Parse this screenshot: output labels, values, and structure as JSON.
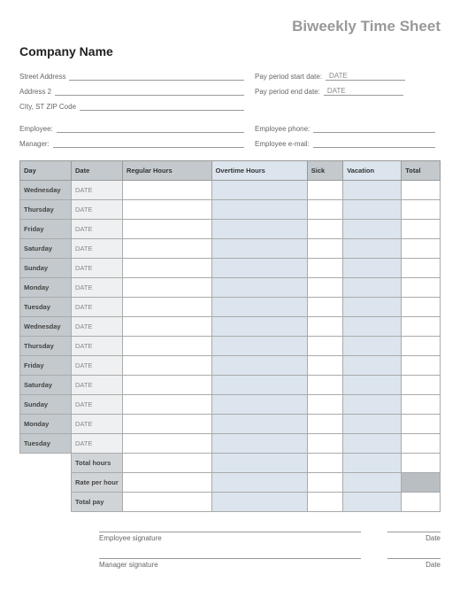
{
  "title": "Biweekly Time Sheet",
  "company_name": "Company Name",
  "address": {
    "street_label": "Street Address",
    "address2_label": "Address 2",
    "city_label": "CIty, ST  ZIP Code"
  },
  "period": {
    "start_label": "Pay period start date:",
    "start_value": "DATE",
    "end_label": "Pay period end date:",
    "end_value": "DATE"
  },
  "people": {
    "employee_label": "Employee:",
    "manager_label": "Manager:",
    "phone_label": "Employee phone:",
    "email_label": "Employee e-mail:"
  },
  "table": {
    "headers": {
      "day": "Day",
      "date": "Date",
      "regular": "Regular Hours",
      "overtime": "Overtime Hours",
      "sick": "Sick",
      "vacation": "Vacation",
      "total": "Total"
    },
    "rows": [
      {
        "day": "Wednesday",
        "date": "DATE"
      },
      {
        "day": "Thursday",
        "date": "DATE"
      },
      {
        "day": "Friday",
        "date": "DATE"
      },
      {
        "day": "Saturday",
        "date": "DATE"
      },
      {
        "day": "Sunday",
        "date": "DATE"
      },
      {
        "day": "Monday",
        "date": "DATE"
      },
      {
        "day": "Tuesday",
        "date": "DATE"
      },
      {
        "day": "Wednesday",
        "date": "DATE"
      },
      {
        "day": "Thursday",
        "date": "DATE"
      },
      {
        "day": "Friday",
        "date": "DATE"
      },
      {
        "day": "Saturday",
        "date": "DATE"
      },
      {
        "day": "Sunday",
        "date": "DATE"
      },
      {
        "day": "Monday",
        "date": "DATE"
      },
      {
        "day": "Tuesday",
        "date": "DATE"
      }
    ],
    "summary": {
      "total_hours": "Total hours",
      "rate_per_hour": "Rate per hour",
      "total_pay": "Total pay"
    }
  },
  "signatures": {
    "employee": "Employee signature",
    "manager": "Manager signature",
    "date": "Date"
  },
  "colors": {
    "header_bg": "#c3c9cc",
    "tinted_bg": "#dce5ed",
    "date_bg": "#eef0f2",
    "summary_bg": "#d0d4d7",
    "border": "#999999"
  }
}
